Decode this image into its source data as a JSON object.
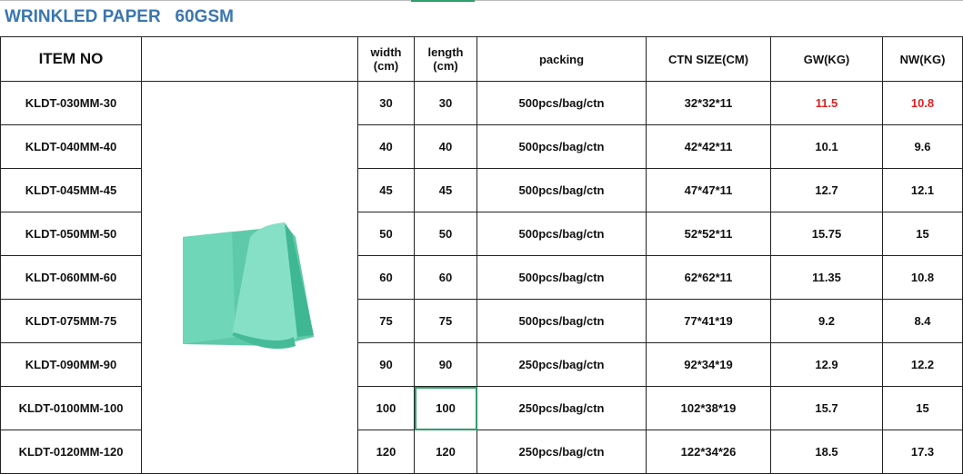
{
  "title": "WRINKLED PAPER   60GSM",
  "headers": {
    "item_no": "ITEM NO",
    "width": "width (cm)",
    "width_l1": "width",
    "width_l2": "(cm)",
    "length_l1": "length",
    "length_l2": "(cm)",
    "packing": "packing",
    "ctn": "CTN SIZE(CM)",
    "gw": "GW(KG)",
    "nw": "NW(KG)"
  },
  "image": {
    "icon": "green-wrinkled-paper-sheets",
    "color": "#6fd6b8"
  },
  "highlight_color": "#e02020",
  "rows": [
    {
      "item": "KLDT-030MM-30",
      "width": "30",
      "length": "30",
      "packing": "500pcs/bag/ctn",
      "ctn": "32*32*11",
      "gw": "11.5",
      "nw": "10.8"
    },
    {
      "item": "KLDT-040MM-40",
      "width": "40",
      "length": "40",
      "packing": "500pcs/bag/ctn",
      "ctn": "42*42*11",
      "gw": "10.1",
      "nw": "9.6"
    },
    {
      "item": "KLDT-045MM-45",
      "width": "45",
      "length": "45",
      "packing": "500pcs/bag/ctn",
      "ctn": "47*47*11",
      "gw": "12.7",
      "nw": "12.1"
    },
    {
      "item": "KLDT-050MM-50",
      "width": "50",
      "length": "50",
      "packing": "500pcs/bag/ctn",
      "ctn": "52*52*11",
      "gw": "15.75",
      "nw": "15"
    },
    {
      "item": "KLDT-060MM-60",
      "width": "60",
      "length": "60",
      "packing": "500pcs/bag/ctn",
      "ctn": "62*62*11",
      "gw": "11.35",
      "nw": "10.8"
    },
    {
      "item": "KLDT-075MM-75",
      "width": "75",
      "length": "75",
      "packing": "500pcs/bag/ctn",
      "ctn": "77*41*19",
      "gw": "9.2",
      "nw": "8.4"
    },
    {
      "item": "KLDT-090MM-90",
      "width": "90",
      "length": "90",
      "packing": "250pcs/bag/ctn",
      "ctn": "92*34*19",
      "gw": "12.9",
      "nw": "12.2"
    },
    {
      "item": "KLDT-0100MM-100",
      "width": "100",
      "length": "100",
      "packing": "250pcs/bag/ctn",
      "ctn": "102*38*19",
      "gw": "15.7",
      "nw": "15"
    },
    {
      "item": "KLDT-0120MM-120",
      "width": "120",
      "length": "120",
      "packing": "250pcs/bag/ctn",
      "ctn": "122*34*26",
      "gw": "18.5",
      "nw": "17.3"
    }
  ]
}
